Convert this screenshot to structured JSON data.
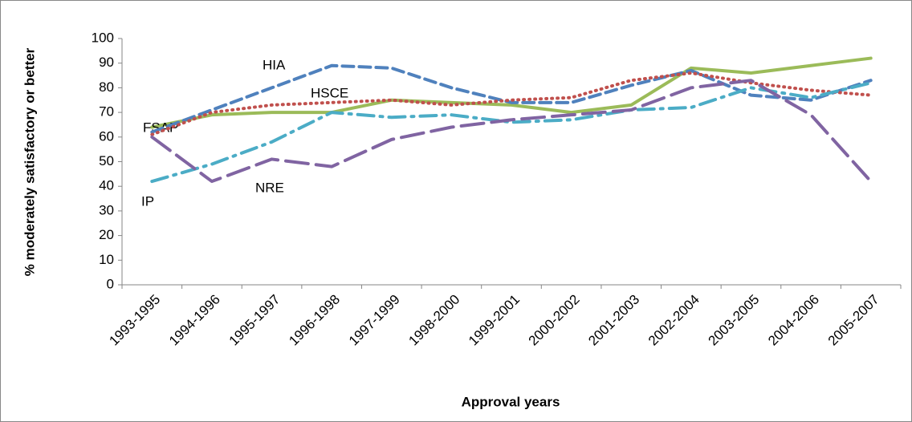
{
  "chart_data": {
    "type": "line",
    "x_label": "Approval years",
    "y_label": "% moderately satisfactory or better",
    "categories": [
      "1993-1995",
      "1994-1996",
      "1995-1997",
      "1996-1998",
      "1997-1999",
      "1998-2000",
      "1999-2001",
      "2000-2002",
      "2001-2003",
      "2002-2004",
      "2003-2005",
      "2004-2006",
      "2005-2007"
    ],
    "series": [
      {
        "name": "FSAP",
        "color": "#9bbb59",
        "style": "solid",
        "values": [
          64,
          69,
          70,
          70,
          75,
          74,
          73,
          70,
          73,
          88,
          86,
          89,
          92
        ]
      },
      {
        "name": "HIA",
        "color": "#4f81bd",
        "style": "dash",
        "values": [
          62,
          71,
          80,
          89,
          88,
          80,
          74,
          74,
          81,
          87,
          77,
          75,
          83
        ]
      },
      {
        "name": "HSCE",
        "color": "#c0504d",
        "style": "dot",
        "values": [
          61,
          70,
          73,
          74,
          75,
          73,
          75,
          76,
          83,
          86,
          82,
          79,
          77
        ]
      },
      {
        "name": "IP",
        "color": "#4bacc6",
        "style": "dashdot",
        "values": [
          42,
          49,
          58,
          70,
          68,
          69,
          66,
          67,
          71,
          72,
          80,
          76,
          82
        ]
      },
      {
        "name": "NRE",
        "color": "#8064a2",
        "style": "longdash",
        "values": [
          60,
          42,
          51,
          48,
          59,
          64,
          67,
          69,
          71,
          80,
          83,
          69,
          42
        ]
      }
    ],
    "ylim": [
      0,
      100
    ],
    "yticks": [
      0,
      10,
      20,
      30,
      40,
      50,
      60,
      70,
      80,
      90,
      100
    ],
    "grid": false
  }
}
